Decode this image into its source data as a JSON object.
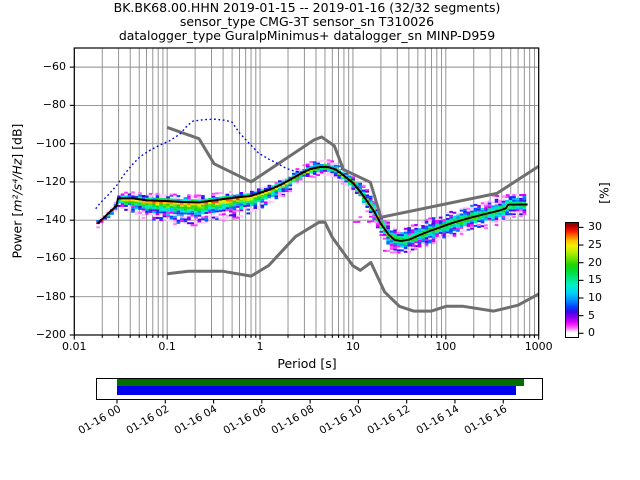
{
  "title": {
    "line1": "BK.BK68.00.HHN   2019-01-15 -- 2019-01-16  (32/32 segments)",
    "line2": "sensor_type CMG-3T sensor_sn T310026",
    "line3": "datalogger_type GuralpMinimus+ datalogger_sn MINP-D959"
  },
  "axes": {
    "xlabel": "Period [s]",
    "x_tick_values": [
      0.01,
      0.1,
      1,
      10,
      100,
      1000
    ],
    "x_tick_labels": [
      "0.01",
      "0.1",
      "1",
      "10",
      "100",
      "1000"
    ],
    "y_tick_values": [
      -60,
      -80,
      -100,
      -120,
      -140,
      -160,
      -180,
      -200
    ],
    "y_tick_labels": [
      "−60",
      "−80",
      "−100",
      "−120",
      "−140",
      "−160",
      "−180",
      "−200"
    ],
    "ylabel_prefix": "Power [",
    "ylabel_math": "m²/s⁴/Hz",
    "ylabel_suffix": "] [dB]"
  },
  "colorbar": {
    "label": "[%]",
    "tick_values": [
      0,
      5,
      10,
      15,
      20,
      25,
      30
    ],
    "tick_labels": [
      "0",
      "5",
      "10",
      "15",
      "20",
      "25",
      "30"
    ],
    "range": [
      0,
      30
    ],
    "stops": [
      [
        0,
        "#ffffff"
      ],
      [
        1,
        "#ff80ff"
      ],
      [
        2,
        "#f830f8"
      ],
      [
        3,
        "#d800f8"
      ],
      [
        4.5,
        "#8000f0"
      ],
      [
        6,
        "#3808e8"
      ],
      [
        7.5,
        "#0048ff"
      ],
      [
        9.5,
        "#0098ff"
      ],
      [
        11.5,
        "#00d4f8"
      ],
      [
        13.5,
        "#00f0c8"
      ],
      [
        15.5,
        "#00e888"
      ],
      [
        17.5,
        "#00dc38"
      ],
      [
        19.5,
        "#20d400"
      ],
      [
        21.5,
        "#78e400"
      ],
      [
        23.5,
        "#c8ee00"
      ],
      [
        25,
        "#f4ee00"
      ],
      [
        26.5,
        "#ffbc00"
      ],
      [
        27.8,
        "#ff6c00"
      ],
      [
        29,
        "#f62400"
      ],
      [
        30,
        "#dc0000"
      ],
      [
        31,
        "#940000"
      ]
    ]
  },
  "timeline": {
    "tick_labels": [
      "01-16 00",
      "01-16 02",
      "01-16 04",
      "01-16 06",
      "01-16 08",
      "01-16 10",
      "01-16 12",
      "01-16 14",
      "01-16 16"
    ],
    "tick_hours": [
      0,
      2,
      4,
      6,
      8,
      10,
      12,
      14,
      16
    ],
    "axis_hours": [
      -0.87,
      17.66
    ],
    "green_hours": [
      0,
      16.85
    ],
    "blue_hours": [
      0,
      16.53
    ],
    "green_color": "#006e00",
    "blue_color": "#0000ee"
  },
  "chart_data": {
    "type": "heatmap",
    "title": "BK.BK68.00.HHN 2019-01-15 -- 2019-01-16 (32/32 segments)",
    "xlabel": "Period [s]",
    "ylabel": "Power [m²/s⁴/Hz] [dB]",
    "xscale": "log",
    "xlim": [
      0.01,
      1000
    ],
    "ylim": [
      -200,
      -50
    ],
    "grid": "both",
    "colorbar_label": "[%]",
    "colorbar_range": [
      0,
      30
    ],
    "grid_color": "#8a8a8a",
    "noise_model_color": "#6f6f6f",
    "mode_line_color": "#000000",
    "dotted_line_color": "#0008e8",
    "series": [
      {
        "name": "psd-mode-line",
        "points": [
          [
            0.018,
            -141.5
          ],
          [
            0.021,
            -138.5
          ],
          [
            0.025,
            -135
          ],
          [
            0.0285,
            -132.5
          ],
          [
            0.0295,
            -128.6
          ],
          [
            0.042,
            -128.5
          ],
          [
            0.06,
            -129.6
          ],
          [
            0.1,
            -130.0
          ],
          [
            0.15,
            -130.5
          ],
          [
            0.22,
            -130.7
          ],
          [
            0.3,
            -129.8
          ],
          [
            0.42,
            -128.8
          ],
          [
            0.6,
            -127.9
          ],
          [
            0.8,
            -127.3
          ],
          [
            1.0,
            -125.7
          ],
          [
            1.3,
            -123.8
          ],
          [
            1.7,
            -121.3
          ],
          [
            2.2,
            -118.3
          ],
          [
            2.8,
            -115.4
          ],
          [
            3.5,
            -113.2
          ],
          [
            4.5,
            -112.1
          ],
          [
            5.5,
            -112.3
          ],
          [
            6.5,
            -113.5
          ],
          [
            7.5,
            -115.6
          ],
          [
            8.5,
            -117.8
          ],
          [
            10,
            -120.5
          ],
          [
            12,
            -125.1
          ],
          [
            14,
            -129.6
          ],
          [
            17,
            -135.6
          ],
          [
            20,
            -141.9
          ],
          [
            24,
            -147.3
          ],
          [
            28,
            -150.3
          ],
          [
            33,
            -150.9
          ],
          [
            40,
            -150.2
          ],
          [
            50,
            -148.1
          ],
          [
            65,
            -145.9
          ],
          [
            85,
            -143.9
          ],
          [
            110,
            -141.9
          ],
          [
            150,
            -139.9
          ],
          [
            200,
            -138.2
          ],
          [
            280,
            -136.5
          ],
          [
            380,
            -134.9
          ],
          [
            440,
            -133.9
          ],
          [
            470,
            -131.9
          ],
          [
            760,
            -131.8
          ]
        ]
      },
      {
        "name": "nhnm-high-noise-model",
        "points": [
          [
            0.1,
            -91.5
          ],
          [
            0.22,
            -97.4
          ],
          [
            0.32,
            -110.5
          ],
          [
            0.8,
            -120.0
          ],
          [
            3.8,
            -98.1
          ],
          [
            4.6,
            -96.5
          ],
          [
            6.3,
            -101.1
          ],
          [
            7.9,
            -113.5
          ],
          [
            15.4,
            -120.2
          ],
          [
            20,
            -138.5
          ],
          [
            354.8,
            -126.0
          ],
          [
            1000,
            -111.8
          ]
        ]
      },
      {
        "name": "nlnm-low-noise-model",
        "points": [
          [
            0.1,
            -168.0
          ],
          [
            0.17,
            -166.7
          ],
          [
            0.4,
            -166.7
          ],
          [
            0.8,
            -169.2
          ],
          [
            1.24,
            -163.7
          ],
          [
            2.4,
            -148.6
          ],
          [
            4.3,
            -141.1
          ],
          [
            5.0,
            -141.1
          ],
          [
            6.0,
            -149.0
          ],
          [
            10,
            -163.8
          ],
          [
            12,
            -166.2
          ],
          [
            15.6,
            -162.1
          ],
          [
            21.9,
            -177.5
          ],
          [
            31.6,
            -185.0
          ],
          [
            45,
            -187.5
          ],
          [
            70,
            -187.5
          ],
          [
            101,
            -185.0
          ],
          [
            154,
            -185.0
          ],
          [
            328,
            -187.5
          ],
          [
            600,
            -184.4
          ],
          [
            1000,
            -178.5
          ]
        ]
      },
      {
        "name": "blue-dotted-curve",
        "points": [
          [
            0.017,
            -134
          ],
          [
            0.019,
            -131
          ],
          [
            0.023,
            -127
          ],
          [
            0.029,
            -121.5
          ],
          [
            0.034,
            -116.4
          ],
          [
            0.042,
            -111
          ],
          [
            0.051,
            -106.8
          ],
          [
            0.066,
            -103.3
          ],
          [
            0.084,
            -100.7
          ],
          [
            0.107,
            -98.4
          ],
          [
            0.137,
            -95.0
          ],
          [
            0.165,
            -90.5
          ],
          [
            0.19,
            -88.2
          ],
          [
            0.25,
            -87.4
          ],
          [
            0.33,
            -87.2
          ],
          [
            0.42,
            -87.8
          ],
          [
            0.5,
            -88.8
          ],
          [
            0.6,
            -94.4
          ],
          [
            0.76,
            -99.7
          ],
          [
            0.96,
            -104.8
          ],
          [
            1.22,
            -107.9
          ],
          [
            1.55,
            -110.4
          ],
          [
            1.92,
            -113.0
          ],
          [
            2.4,
            -114.5
          ],
          [
            3.0,
            -115.2
          ]
        ]
      }
    ],
    "histogram_band": {
      "period_step_octaves": 0.125,
      "period_range": [
        0.018,
        760
      ],
      "spread": [
        [
          0.018,
          1.2,
          0.6
        ],
        [
          0.024,
          2.0,
          1.0
        ],
        [
          0.029,
          2.5,
          1.2
        ],
        [
          0.032,
          5.0,
          1.8
        ],
        [
          0.05,
          8.0,
          2.2
        ],
        [
          0.08,
          10.0,
          2.6
        ],
        [
          0.13,
          11.0,
          2.6
        ],
        [
          0.25,
          11.0,
          2.6
        ],
        [
          0.5,
          10.0,
          2.2
        ],
        [
          0.8,
          9.0,
          2.2
        ],
        [
          1.2,
          7.0,
          2.2
        ],
        [
          1.8,
          5.5,
          2.2
        ],
        [
          2.6,
          4.5,
          2.4
        ],
        [
          4.0,
          3.6,
          2.6
        ],
        [
          6.0,
          3.6,
          2.6
        ],
        [
          9.0,
          3.8,
          3.0
        ],
        [
          13,
          4.2,
          4.5
        ],
        [
          18,
          4.6,
          5.5
        ],
        [
          25,
          5.0,
          6.5
        ],
        [
          33,
          5.5,
          6.0
        ],
        [
          45,
          5.5,
          5.5
        ],
        [
          70,
          6.0,
          5.5
        ],
        [
          120,
          6.0,
          5.5
        ],
        [
          250,
          6.5,
          6.0
        ],
        [
          450,
          6.0,
          5.5
        ],
        [
          760,
          4.5,
          4.5
        ]
      ],
      "max_percent": [
        [
          0.018,
          31
        ],
        [
          8,
          31
        ],
        [
          20,
          27
        ],
        [
          40,
          24
        ],
        [
          760,
          23
        ]
      ],
      "outlier_runs": [
        {
          "t1": 10.5,
          "t2": 21,
          "db": -140.5
        },
        {
          "t1": 12,
          "t2": 17,
          "db": -138.2
        },
        {
          "t1": 22,
          "t2": 33,
          "db": -156.5
        },
        {
          "t1": 35,
          "t2": 55,
          "db": -153.5
        },
        {
          "t1": 300,
          "t2": 520,
          "db": -127.0
        }
      ]
    }
  }
}
